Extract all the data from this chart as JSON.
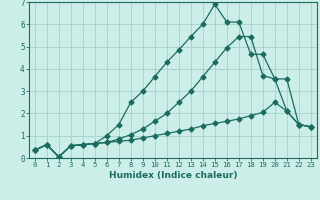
{
  "xlabel": "Humidex (Indice chaleur)",
  "background_color": "#cceee8",
  "grid_color": "#aad4ce",
  "line_color": "#1a6b60",
  "tick_color": "#1a6b60",
  "xlim": [
    -0.5,
    23.5
  ],
  "ylim": [
    0,
    7
  ],
  "xticks": [
    0,
    1,
    2,
    3,
    4,
    5,
    6,
    7,
    8,
    9,
    10,
    11,
    12,
    13,
    14,
    15,
    16,
    17,
    18,
    19,
    20,
    21,
    22,
    23
  ],
  "yticks": [
    0,
    1,
    2,
    3,
    4,
    5,
    6,
    7
  ],
  "line1_x": [
    0,
    1,
    2,
    3,
    4,
    5,
    6,
    7,
    8,
    9,
    10,
    11,
    12,
    13,
    14,
    15,
    16,
    17,
    18,
    19,
    20,
    21,
    22,
    23
  ],
  "line1_y": [
    0.35,
    0.6,
    0.05,
    0.55,
    0.6,
    0.65,
    0.7,
    0.75,
    0.8,
    0.9,
    1.0,
    1.1,
    1.2,
    1.3,
    1.45,
    1.55,
    1.65,
    1.75,
    1.9,
    2.05,
    2.5,
    2.1,
    1.5,
    1.4
  ],
  "line2_x": [
    0,
    1,
    2,
    3,
    4,
    5,
    6,
    7,
    8,
    9,
    10,
    11,
    12,
    13,
    14,
    15,
    16,
    17,
    18,
    19,
    20,
    21,
    22,
    23
  ],
  "line2_y": [
    0.35,
    0.6,
    0.05,
    0.55,
    0.6,
    0.65,
    0.7,
    0.85,
    1.05,
    1.3,
    1.65,
    2.0,
    2.5,
    3.0,
    3.65,
    4.3,
    4.95,
    5.45,
    5.45,
    3.7,
    3.55,
    3.55,
    1.5,
    1.4
  ],
  "line3_x": [
    0,
    1,
    2,
    3,
    4,
    5,
    6,
    7,
    8,
    9,
    10,
    11,
    12,
    13,
    14,
    15,
    16,
    17,
    18,
    19,
    20,
    21,
    22,
    23
  ],
  "line3_y": [
    0.35,
    0.6,
    0.05,
    0.55,
    0.6,
    0.65,
    1.0,
    1.5,
    2.5,
    3.0,
    3.65,
    4.3,
    4.85,
    5.45,
    6.0,
    6.9,
    6.1,
    6.1,
    4.65,
    4.65,
    3.55,
    2.1,
    1.5,
    1.4
  ]
}
